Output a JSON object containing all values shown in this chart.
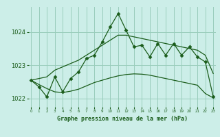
{
  "background_color": "#cceee8",
  "grid_color": "#99ccbb",
  "line_color": "#1a5c1a",
  "x_values": [
    0,
    1,
    2,
    3,
    4,
    5,
    6,
    7,
    8,
    9,
    10,
    11,
    12,
    13,
    14,
    15,
    16,
    17,
    18,
    19,
    20,
    21,
    22,
    23
  ],
  "jagged_line": [
    1022.55,
    1022.35,
    1022.05,
    1022.65,
    1022.2,
    1022.6,
    1022.8,
    1023.2,
    1023.3,
    1023.7,
    1024.15,
    1024.55,
    1024.05,
    1023.55,
    1023.6,
    1023.25,
    1023.65,
    1023.3,
    1023.65,
    1023.3,
    1023.55,
    1023.25,
    1023.1,
    1022.05
  ],
  "smooth_upper": [
    1022.55,
    1022.6,
    1022.65,
    1022.85,
    1022.95,
    1023.05,
    1023.15,
    1023.3,
    1023.45,
    1023.6,
    1023.75,
    1023.9,
    1023.9,
    1023.85,
    1023.8,
    1023.75,
    1023.7,
    1023.65,
    1023.6,
    1023.55,
    1023.5,
    1023.45,
    1023.3,
    1022.75
  ],
  "smooth_lower": [
    1022.55,
    1022.42,
    1022.3,
    1022.2,
    1022.18,
    1022.22,
    1022.28,
    1022.38,
    1022.48,
    1022.55,
    1022.62,
    1022.68,
    1022.72,
    1022.74,
    1022.73,
    1022.7,
    1022.65,
    1022.6,
    1022.55,
    1022.5,
    1022.45,
    1022.4,
    1022.15,
    1022.02
  ],
  "xlabel": "Graphe pression niveau de la mer (hPa)",
  "ylim": [
    1021.75,
    1024.75
  ],
  "yticks": [
    1022,
    1023,
    1024
  ],
  "xlim": [
    -0.3,
    23.3
  ]
}
